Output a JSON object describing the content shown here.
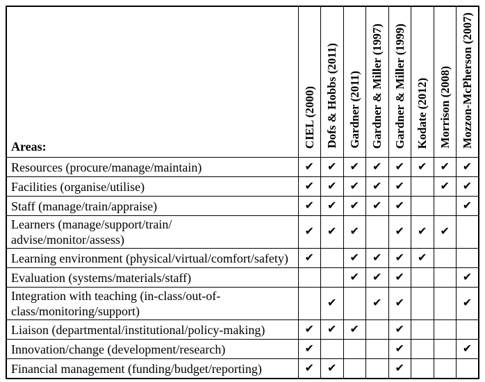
{
  "table": {
    "areas_label": "Areas:",
    "check_glyph": "✔",
    "columns": [
      "CIEL (2000)",
      "Dofs & Hobbs (2011)",
      "Gardner (2011)",
      "Gardner & Miller (1997)",
      "Gardner & Miller (1999)",
      "Kodate (2012)",
      "Morrison (2008)",
      "Mozzon-McPherson (2007)"
    ],
    "rows": [
      {
        "lines": [
          "Resources (procure/manage/maintain)"
        ],
        "checks": [
          1,
          1,
          1,
          1,
          1,
          1,
          1,
          1
        ]
      },
      {
        "lines": [
          "Facilities (organise/utilise)"
        ],
        "checks": [
          1,
          1,
          1,
          1,
          1,
          0,
          1,
          1
        ]
      },
      {
        "lines": [
          "Staff (manage/train/appraise)"
        ],
        "checks": [
          1,
          1,
          1,
          1,
          1,
          0,
          0,
          1
        ]
      },
      {
        "lines": [
          "Learners (manage/support/train/",
          "advise/monitor/assess)"
        ],
        "checks": [
          1,
          1,
          1,
          0,
          1,
          1,
          1,
          0
        ]
      },
      {
        "lines": [
          "Learning environment (physical/virtual/comfort/safety)"
        ],
        "checks": [
          1,
          0,
          1,
          1,
          1,
          1,
          0,
          0
        ]
      },
      {
        "lines": [
          "Evaluation (systems/materials/staff)"
        ],
        "checks": [
          0,
          0,
          1,
          1,
          1,
          0,
          0,
          1
        ]
      },
      {
        "lines": [
          "Integration with teaching (in-class/out-of-",
          "class/monitoring/support)"
        ],
        "checks": [
          0,
          1,
          0,
          1,
          1,
          0,
          0,
          1
        ]
      },
      {
        "lines": [
          "Liaison (departmental/institutional/policy-making)"
        ],
        "checks": [
          1,
          1,
          1,
          0,
          1,
          0,
          0,
          0
        ]
      },
      {
        "lines": [
          "Innovation/change (development/research)"
        ],
        "checks": [
          1,
          0,
          0,
          0,
          1,
          0,
          0,
          1
        ]
      },
      {
        "lines": [
          "Financial management (funding/budget/reporting)"
        ],
        "checks": [
          1,
          1,
          0,
          0,
          1,
          0,
          0,
          0
        ]
      }
    ]
  }
}
